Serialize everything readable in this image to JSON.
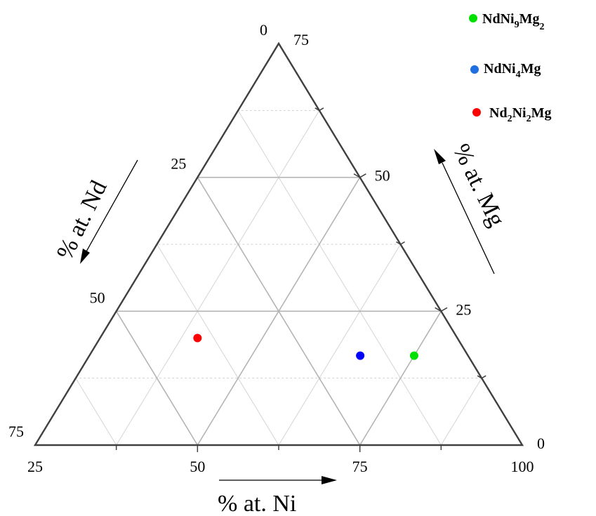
{
  "chart_data": {
    "type": "scatter",
    "subtype": "ternary",
    "axes": {
      "ni": {
        "title": "% at. Ni",
        "range": [
          25,
          100
        ],
        "ticks": [
          25,
          50,
          75,
          100
        ]
      },
      "nd": {
        "title": "% at. Nd",
        "range": [
          0,
          75
        ],
        "ticks": [
          0,
          25,
          50,
          75
        ]
      },
      "mg": {
        "title": "% at. Mg",
        "range": [
          0,
          75
        ],
        "ticks": [
          0,
          25,
          50,
          75
        ]
      }
    },
    "grid": true,
    "legend_position": "top-right",
    "series": [
      {
        "name": "NdNi9Mg2",
        "color": "#00e000",
        "points": [
          {
            "Ni": 75,
            "Nd": 8.3,
            "Mg": 16.7
          }
        ]
      },
      {
        "name": "NdNi4Mg",
        "color": "#0000ff",
        "points": [
          {
            "Ni": 66.7,
            "Nd": 16.7,
            "Mg": 16.7
          }
        ]
      },
      {
        "name": "Nd2Ni2Mg",
        "color": "#ff0000",
        "points": [
          {
            "Ni": 40,
            "Nd": 40,
            "Mg": 20
          }
        ]
      }
    ]
  },
  "legend": [
    {
      "base": "NdNi",
      "sub1": "9",
      "mid": "Mg",
      "sub2": "2",
      "pre": "",
      "sub0": ""
    },
    {
      "base": "NdNi",
      "sub1": "4",
      "mid": "Mg",
      "sub2": "",
      "pre": "",
      "sub0": ""
    },
    {
      "base": "Ni",
      "sub1": "2",
      "mid": "Mg",
      "sub2": "",
      "pre": "Nd",
      "sub0": "2"
    }
  ]
}
